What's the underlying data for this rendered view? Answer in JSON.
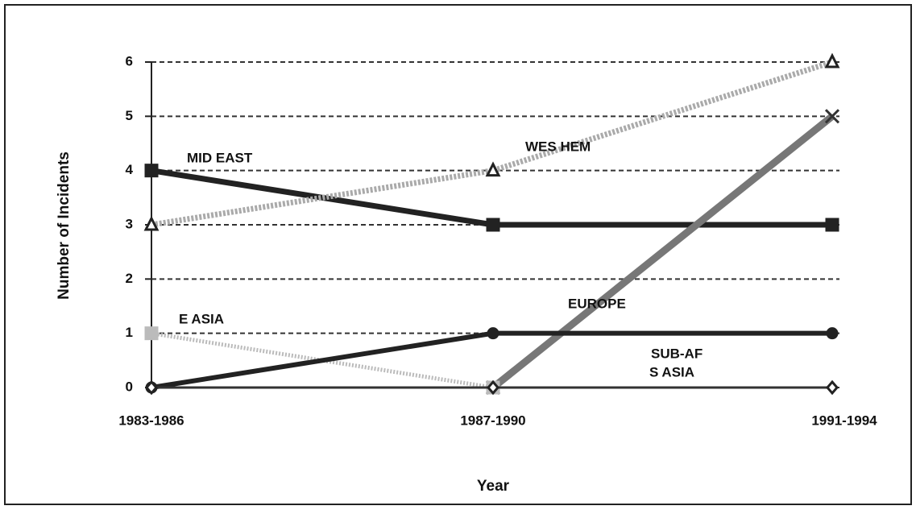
{
  "chart_data": {
    "type": "line",
    "xlabel": "Year",
    "ylabel": "Number of Incidents",
    "categories": [
      "1983-1986",
      "1987-1990",
      "1991-1994"
    ],
    "ylim": [
      0,
      6
    ],
    "yticks": [
      0,
      1,
      2,
      3,
      4,
      5,
      6
    ],
    "grid": true,
    "series": [
      {
        "name": "MID EAST",
        "color": "#222222",
        "values": [
          4,
          3,
          3
        ]
      },
      {
        "name": "WES HEM",
        "color": "#aaaaaa",
        "values": [
          3,
          4,
          6
        ]
      },
      {
        "name": "EUROPE",
        "color": "#777777",
        "values": [
          null,
          0,
          5
        ]
      },
      {
        "name": "E ASIA",
        "color": "#bbbbbb",
        "values": [
          1,
          0,
          null
        ]
      },
      {
        "name": "SUB-AF",
        "color": "#222222",
        "values": [
          0,
          1,
          1
        ]
      },
      {
        "name": "S ASIA",
        "color": "#333333",
        "values": [
          0,
          0,
          0
        ]
      }
    ]
  }
}
